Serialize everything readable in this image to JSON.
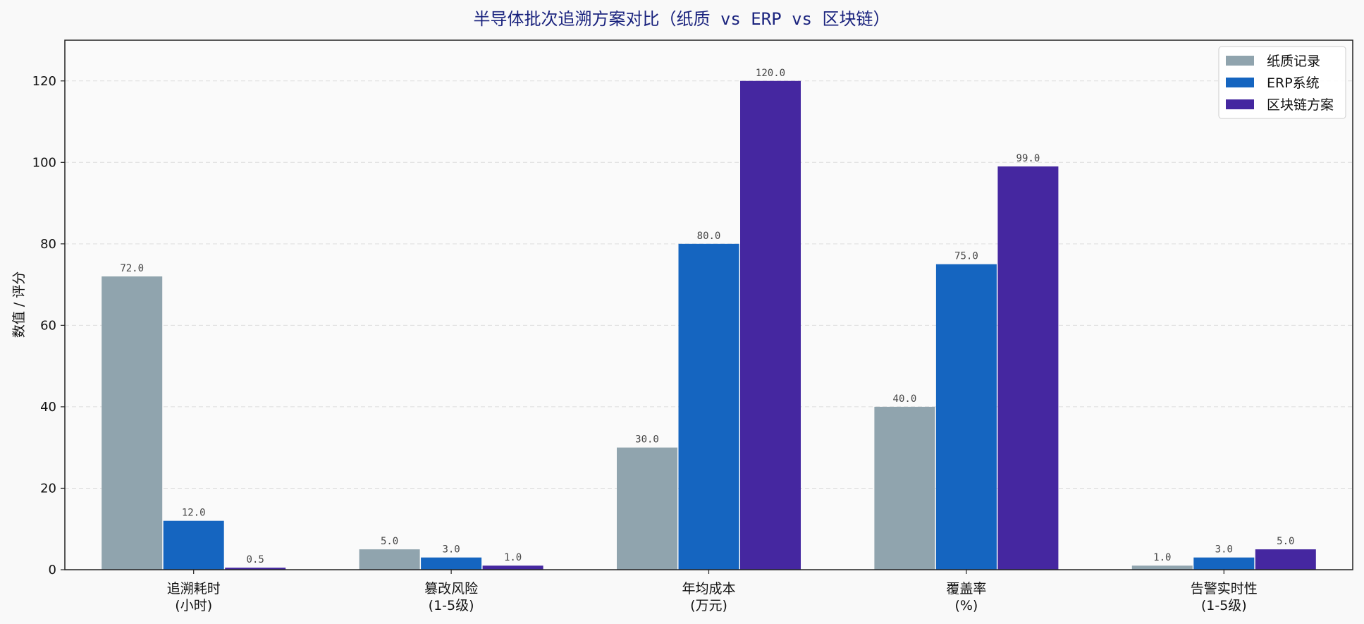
{
  "chart_data": {
    "type": "bar",
    "title": "半导体批次追溯方案对比（纸质 vs ERP vs 区块链）",
    "xlabel": "",
    "ylabel": "数值 / 评分",
    "ylim": [
      0,
      130
    ],
    "yticks": [
      0,
      20,
      40,
      60,
      80,
      100,
      120
    ],
    "grid": true,
    "legend_position": "top-right",
    "categories": [
      [
        "追溯耗时",
        "(小时)"
      ],
      [
        "篡改风险",
        "(1-5级)"
      ],
      [
        "年均成本",
        "(万元)"
      ],
      [
        "覆盖率",
        "(%)"
      ],
      [
        "告警实时性",
        "(1-5级)"
      ]
    ],
    "series": [
      {
        "name": "纸质记录",
        "color": "#90a4ae",
        "values": [
          72.0,
          5.0,
          30.0,
          40.0,
          1.0
        ],
        "labels": [
          "72.0",
          "5.0",
          "30.0",
          "40.0",
          "1.0"
        ]
      },
      {
        "name": "ERP系统",
        "color": "#1565c0",
        "values": [
          12.0,
          3.0,
          80.0,
          75.0,
          3.0
        ],
        "labels": [
          "12.0",
          "3.0",
          "80.0",
          "75.0",
          "3.0"
        ]
      },
      {
        "name": "区块链方案",
        "color": "#4527a0",
        "values": [
          0.5,
          1.0,
          120.0,
          99.0,
          5.0
        ],
        "labels": [
          "0.5",
          "1.0",
          "120.0",
          "99.0",
          "5.0"
        ]
      }
    ]
  }
}
